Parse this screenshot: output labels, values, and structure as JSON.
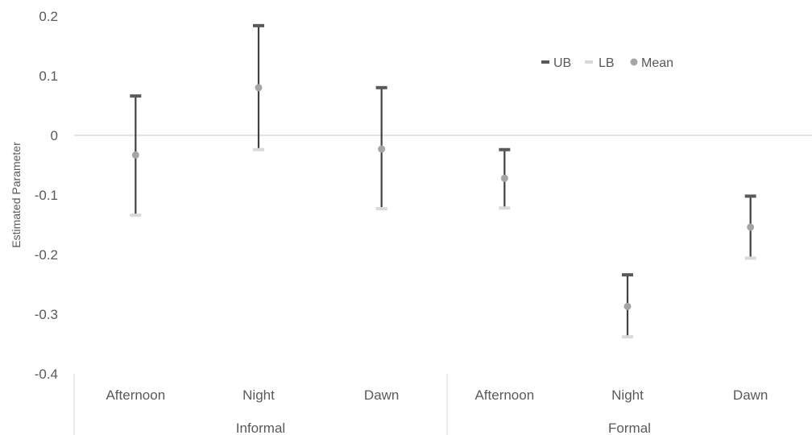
{
  "chart_data": {
    "type": "error-bar",
    "ylabel": "Estimated Parameter",
    "ylim": [
      -0.4,
      0.2
    ],
    "yticks": [
      0.2,
      0.1,
      0,
      -0.1,
      -0.2,
      -0.3,
      -0.4
    ],
    "ytick_labels": [
      "0.2",
      "0.1",
      "0",
      "-0.1",
      "-0.2",
      "-0.3",
      "-0.4"
    ],
    "groups": [
      "Informal",
      "Formal"
    ],
    "categories": [
      {
        "group": "Informal",
        "label": "Afternoon",
        "ub": 0.066,
        "lb": -0.134,
        "mean": -0.033
      },
      {
        "group": "Informal",
        "label": "Night",
        "ub": 0.184,
        "lb": -0.024,
        "mean": 0.08
      },
      {
        "group": "Informal",
        "label": "Dawn",
        "ub": 0.08,
        "lb": -0.123,
        "mean": -0.023
      },
      {
        "group": "Formal",
        "label": "Afternoon",
        "ub": -0.024,
        "lb": -0.122,
        "mean": -0.072
      },
      {
        "group": "Formal",
        "label": "Night",
        "ub": -0.234,
        "lb": -0.338,
        "mean": -0.287
      },
      {
        "group": "Formal",
        "label": "Dawn",
        "ub": -0.102,
        "lb": -0.206,
        "mean": -0.154
      }
    ],
    "series": [
      {
        "name": "UB",
        "color": "#595959",
        "marker": "dash"
      },
      {
        "name": "LB",
        "color": "#d9d9d9",
        "marker": "dash"
      },
      {
        "name": "Mean",
        "color": "#a5a5a5",
        "marker": "circle"
      }
    ],
    "legend_position": "top-right",
    "grid": false,
    "zero_line_color": "#d9d9d9",
    "errorbar_color": "#404040"
  }
}
